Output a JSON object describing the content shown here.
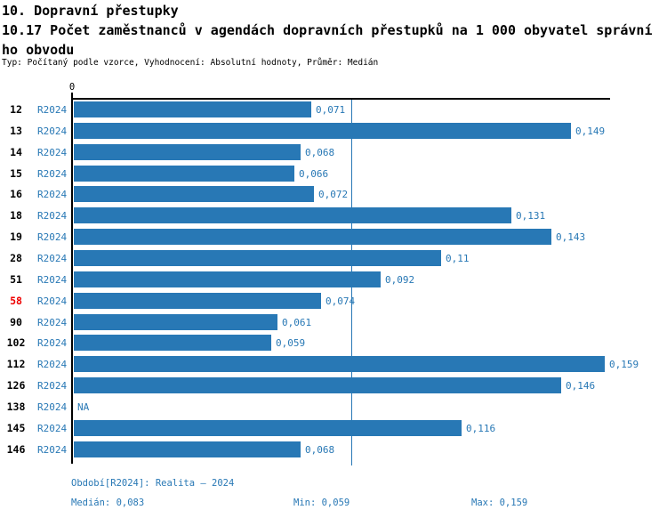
{
  "header": {
    "title": "10. Dopravní přestupky",
    "subtitle_line1": "10.17 Počet zaměstnanců v agendách dopravních přestupků na 1 000 obyvatel správní",
    "subtitle_line2": "ho obvodu",
    "meta": "Typ: Počítaný podle vzorce, Vyhodnocení: Absolutní hodnoty, Průměr: Medián"
  },
  "colors": {
    "accent_blue": "#2878b5",
    "highlight_red": "#ee0000",
    "axis_black": "#000000"
  },
  "chart_data": {
    "type": "bar",
    "orientation": "horizontal",
    "zero_label": "0",
    "series_name": "R2024",
    "categories": [
      "12",
      "13",
      "14",
      "15",
      "16",
      "18",
      "19",
      "28",
      "51",
      "58",
      "90",
      "102",
      "112",
      "126",
      "138",
      "145",
      "146"
    ],
    "values": [
      0.071,
      0.149,
      0.068,
      0.066,
      0.072,
      0.131,
      0.143,
      0.11,
      0.092,
      0.074,
      0.061,
      0.059,
      0.159,
      0.146,
      null,
      0.116,
      0.068
    ],
    "value_labels": [
      "0,071",
      "0,149",
      "0,068",
      "0,066",
      "0,072",
      "0,131",
      "0,143",
      "0,11",
      "0,092",
      "0,074",
      "0,061",
      "0,059",
      "0,159",
      "0,146",
      "NA",
      "0,116",
      "0,068"
    ],
    "highlighted_category": "58",
    "median_value": 0.083,
    "xlim": [
      0,
      0.161
    ],
    "grid": false,
    "legend": "none"
  },
  "rows": [
    {
      "label": "12",
      "series": "R2024",
      "value": 0.071,
      "value_label": "0,071",
      "highlight": false
    },
    {
      "label": "13",
      "series": "R2024",
      "value": 0.149,
      "value_label": "0,149",
      "highlight": false
    },
    {
      "label": "14",
      "series": "R2024",
      "value": 0.068,
      "value_label": "0,068",
      "highlight": false
    },
    {
      "label": "15",
      "series": "R2024",
      "value": 0.066,
      "value_label": "0,066",
      "highlight": false
    },
    {
      "label": "16",
      "series": "R2024",
      "value": 0.072,
      "value_label": "0,072",
      "highlight": false
    },
    {
      "label": "18",
      "series": "R2024",
      "value": 0.131,
      "value_label": "0,131",
      "highlight": false
    },
    {
      "label": "19",
      "series": "R2024",
      "value": 0.143,
      "value_label": "0,143",
      "highlight": false
    },
    {
      "label": "28",
      "series": "R2024",
      "value": 0.11,
      "value_label": "0,11",
      "highlight": false
    },
    {
      "label": "51",
      "series": "R2024",
      "value": 0.092,
      "value_label": "0,092",
      "highlight": false
    },
    {
      "label": "58",
      "series": "R2024",
      "value": 0.074,
      "value_label": "0,074",
      "highlight": true
    },
    {
      "label": "90",
      "series": "R2024",
      "value": 0.061,
      "value_label": "0,061",
      "highlight": false
    },
    {
      "label": "102",
      "series": "R2024",
      "value": 0.059,
      "value_label": "0,059",
      "highlight": false
    },
    {
      "label": "112",
      "series": "R2024",
      "value": 0.159,
      "value_label": "0,159",
      "highlight": false
    },
    {
      "label": "126",
      "series": "R2024",
      "value": 0.146,
      "value_label": "0,146",
      "highlight": false
    },
    {
      "label": "138",
      "series": "R2024",
      "value": null,
      "value_label": "NA",
      "highlight": false
    },
    {
      "label": "145",
      "series": "R2024",
      "value": 0.116,
      "value_label": "0,116",
      "highlight": false
    },
    {
      "label": "146",
      "series": "R2024",
      "value": 0.068,
      "value_label": "0,068",
      "highlight": false
    }
  ],
  "footer": {
    "period": "Období[R2024]: Realita – 2024",
    "median": "Medián: 0,083",
    "min": "Min: 0,059",
    "max": "Max: 0,159"
  }
}
